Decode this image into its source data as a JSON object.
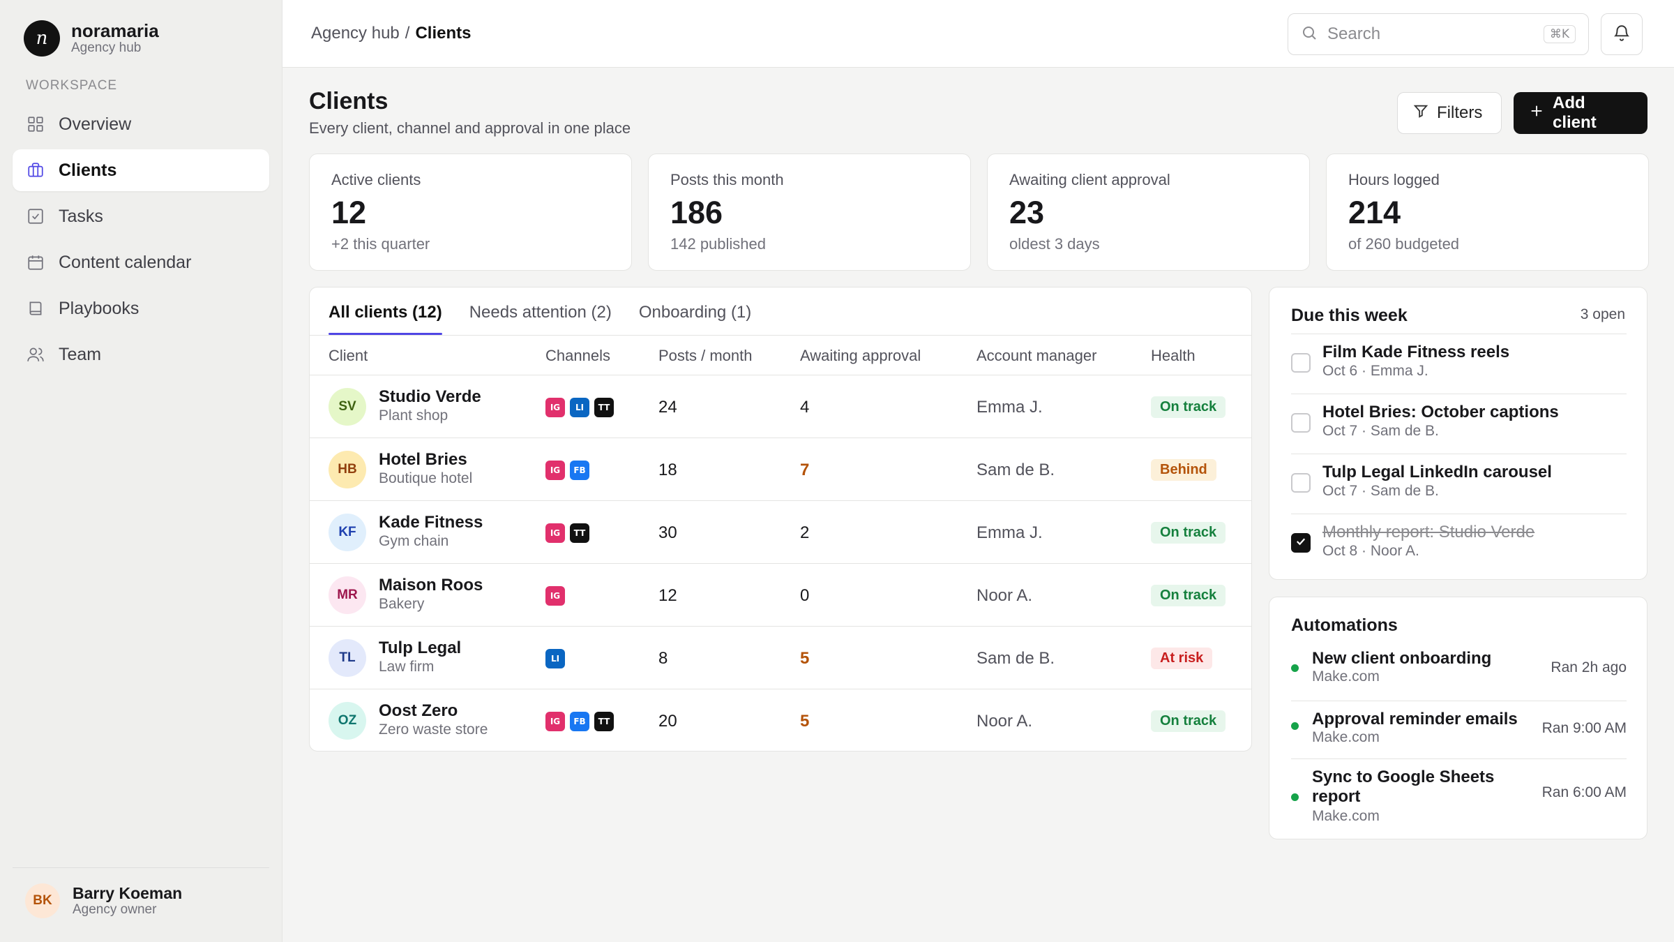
{
  "brand": {
    "logo_letter": "n",
    "name": "noramaria",
    "subtitle": "Agency hub"
  },
  "sidebar": {
    "section_label": "WORKSPACE",
    "items": [
      {
        "label": "Overview",
        "icon": "grid-icon",
        "active": false
      },
      {
        "label": "Clients",
        "icon": "briefcase-icon",
        "active": true
      },
      {
        "label": "Tasks",
        "icon": "checkbox-icon",
        "active": false
      },
      {
        "label": "Content calendar",
        "icon": "calendar-icon",
        "active": false
      },
      {
        "label": "Playbooks",
        "icon": "book-icon",
        "active": false
      },
      {
        "label": "Team",
        "icon": "users-icon",
        "active": false
      }
    ],
    "user": {
      "initials": "BK",
      "name": "Barry Koeman",
      "role": "Agency owner"
    }
  },
  "topbar": {
    "breadcrumb": {
      "parent": "Agency hub",
      "separator": "/",
      "current": "Clients"
    },
    "search": {
      "placeholder": "Search",
      "shortcut": "⌘K"
    }
  },
  "page": {
    "title": "Clients",
    "subtitle": "Every client, channel and approval in one place",
    "filters_label": "Filters",
    "add_label": "Add client"
  },
  "stats": [
    {
      "label": "Active clients",
      "value": "12",
      "note": "+2 this quarter"
    },
    {
      "label": "Posts this month",
      "value": "186",
      "note": "142 published"
    },
    {
      "label": "Awaiting client approval",
      "value": "23",
      "note": "oldest 3 days"
    },
    {
      "label": "Hours logged",
      "value": "214",
      "note": "of 260 budgeted"
    }
  ],
  "tabs": [
    "All clients (12)",
    "Needs attention (2)",
    "Onboarding (1)"
  ],
  "table": {
    "columns": [
      "Client",
      "Channels",
      "Posts / month",
      "Awaiting approval",
      "Account manager",
      "Health"
    ],
    "rows": [
      {
        "initials": "SV",
        "name": "Studio Verde",
        "type": "Plant shop",
        "channels": [
          "IG",
          "LI",
          "TT"
        ],
        "posts": "24",
        "awaiting": "4",
        "awaiting_warn": false,
        "manager": "Emma J.",
        "health": "On track",
        "health_kind": "ok",
        "avatar_bg": "#e5f7c8",
        "avatar_fg": "#3f6212"
      },
      {
        "initials": "HB",
        "name": "Hotel Bries",
        "type": "Boutique hotel",
        "channels": [
          "IG",
          "FB"
        ],
        "posts": "18",
        "awaiting": "7",
        "awaiting_warn": true,
        "manager": "Sam de B.",
        "health": "Behind",
        "health_kind": "behind",
        "avatar_bg": "#fdeab0",
        "avatar_fg": "#92400e"
      },
      {
        "initials": "KF",
        "name": "Kade Fitness",
        "type": "Gym chain",
        "channels": [
          "IG",
          "TT"
        ],
        "posts": "30",
        "awaiting": "2",
        "awaiting_warn": false,
        "manager": "Emma J.",
        "health": "On track",
        "health_kind": "ok",
        "avatar_bg": "#e0effc",
        "avatar_fg": "#1e40af"
      },
      {
        "initials": "MR",
        "name": "Maison Roos",
        "type": "Bakery",
        "channels": [
          "IG"
        ],
        "posts": "12",
        "awaiting": "0",
        "awaiting_warn": false,
        "manager": "Noor A.",
        "health": "On track",
        "health_kind": "ok",
        "avatar_bg": "#fce7f1",
        "avatar_fg": "#9d174d"
      },
      {
        "initials": "TL",
        "name": "Tulp Legal",
        "type": "Law firm",
        "channels": [
          "LI"
        ],
        "posts": "8",
        "awaiting": "5",
        "awaiting_warn": true,
        "manager": "Sam de B.",
        "health": "At risk",
        "health_kind": "risk",
        "avatar_bg": "#e3e9fb",
        "avatar_fg": "#1e3a8a"
      },
      {
        "initials": "OZ",
        "name": "Oost Zero",
        "type": "Zero waste store",
        "channels": [
          "IG",
          "FB",
          "TT"
        ],
        "posts": "20",
        "awaiting": "5",
        "awaiting_warn": true,
        "manager": "Noor A.",
        "health": "On track",
        "health_kind": "ok",
        "avatar_bg": "#d8f6ef",
        "avatar_fg": "#0f766e"
      }
    ]
  },
  "channel_colors": {
    "IG": "#e1306c",
    "LI": "#0a66c2",
    "TT": "#111111",
    "FB": "#1877f2"
  },
  "due": {
    "title": "Due this week",
    "meta": "3 open",
    "items": [
      {
        "title": "Film Kade Fitness reels",
        "sub": "Oct 6 · Emma J.",
        "done": false
      },
      {
        "title": "Hotel Bries: October captions",
        "sub": "Oct 7 · Sam de B.",
        "done": false
      },
      {
        "title": "Tulp Legal LinkedIn carousel",
        "sub": "Oct 7 · Sam de B.",
        "done": false
      },
      {
        "title": "Monthly report: Studio Verde",
        "sub": "Oct 8 · Noor A.",
        "done": true
      }
    ]
  },
  "automations": {
    "title": "Automations",
    "items": [
      {
        "title": "New client onboarding",
        "sub": "Make.com",
        "time": "Ran 2h ago"
      },
      {
        "title": "Approval reminder emails",
        "sub": "Make.com",
        "time": "Ran 9:00 AM"
      },
      {
        "title": "Sync to Google Sheets report",
        "sub": "Make.com",
        "time": "Ran 6:00 AM"
      }
    ],
    "status_color": "#16a34a"
  }
}
